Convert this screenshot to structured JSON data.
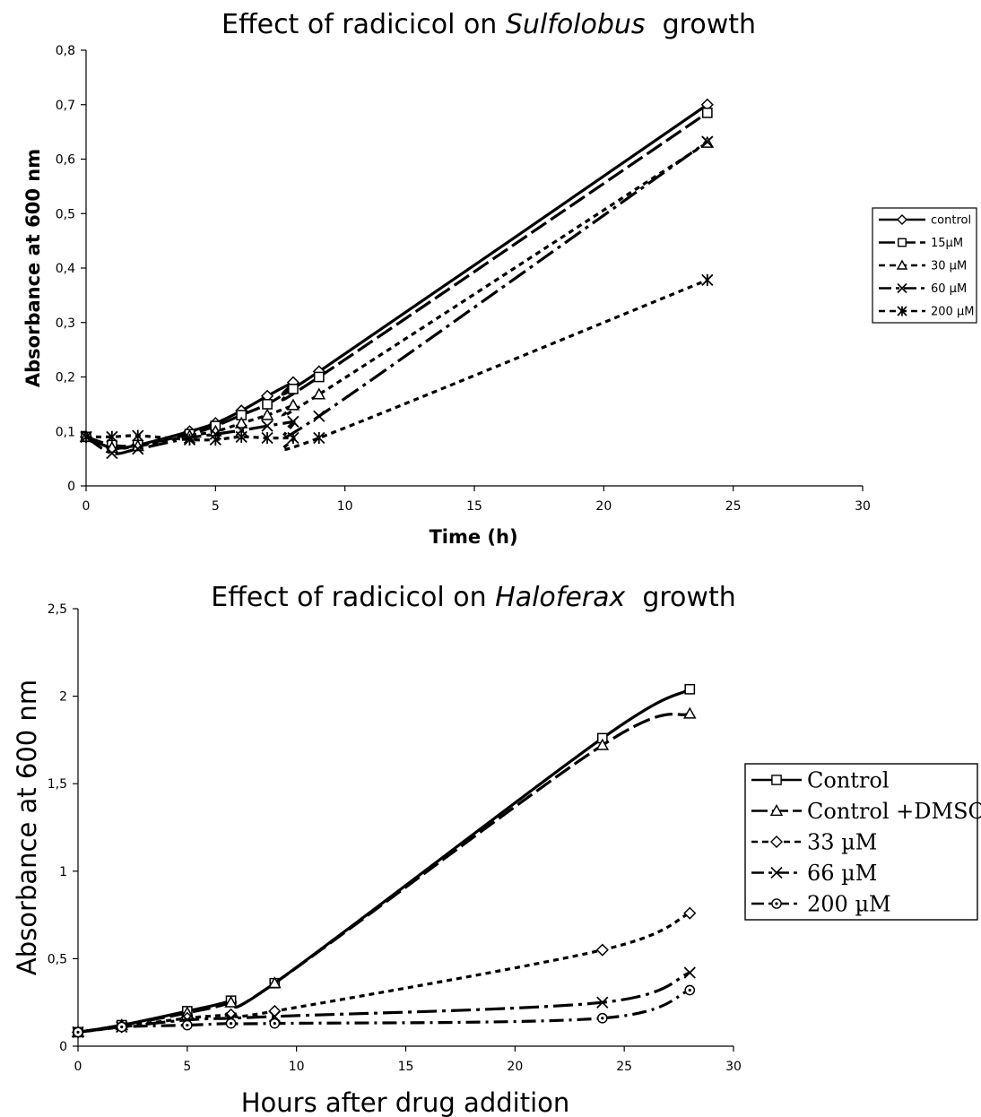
{
  "chart_data": [
    {
      "type": "line",
      "title_prefix": "Effect of radicicol on ",
      "title_italic": "Sulfolobus",
      "title_suffix": "growth",
      "xlabel": "Time (h)",
      "ylabel": "Absorbance at 600 nm",
      "xlim": [
        0,
        30
      ],
      "ylim": [
        0,
        0.8
      ],
      "xticks": [
        "0",
        "5",
        "10",
        "15",
        "20",
        "25",
        "30"
      ],
      "yticks": [
        "0",
        "0,1",
        "0,2",
        "0,3",
        "0,4",
        "0,5",
        "0,6",
        "0,7",
        "0,8"
      ],
      "grid": false,
      "legend_position": "right",
      "series": [
        {
          "name": "control",
          "marker": "diamond",
          "dash": "solid",
          "x": [
            0,
            1,
            2,
            4,
            5,
            6,
            7,
            8,
            9,
            24
          ],
          "y": [
            0.09,
            0.07,
            0.075,
            0.1,
            0.115,
            0.138,
            0.165,
            0.19,
            0.21,
            0.7
          ]
        },
        {
          "name": "15µM",
          "marker": "square",
          "dash": "longdash",
          "x": [
            0,
            1,
            2,
            4,
            5,
            6,
            7,
            8,
            9,
            24
          ],
          "y": [
            0.09,
            0.075,
            0.075,
            0.095,
            0.11,
            0.13,
            0.15,
            0.178,
            0.2,
            0.685
          ]
        },
        {
          "name": "30 µM",
          "marker": "triangle",
          "dash": "shortdash",
          "x": [
            0,
            1,
            2,
            4,
            5,
            6,
            7,
            8,
            9,
            24
          ],
          "y": [
            0.09,
            0.07,
            0.073,
            0.092,
            0.1,
            0.115,
            0.13,
            0.148,
            0.168,
            0.63
          ]
        },
        {
          "name": "60 µM",
          "marker": "x",
          "dash": "dashdot",
          "x": [
            0,
            1,
            2,
            4,
            5,
            6,
            7,
            8,
            9,
            24
          ],
          "y": [
            0.09,
            0.06,
            0.068,
            0.088,
            0.095,
            0.102,
            0.11,
            0.118,
            0.128,
            0.632
          ]
        },
        {
          "name": "200 µM",
          "marker": "star",
          "dash": "shortdash",
          "x": [
            0,
            1,
            2,
            4,
            5,
            6,
            7,
            8,
            9,
            24
          ],
          "y": [
            0.09,
            0.09,
            0.092,
            0.085,
            0.085,
            0.09,
            0.088,
            0.088,
            0.088,
            0.378
          ]
        }
      ]
    },
    {
      "type": "line",
      "title_prefix": "Effect of radicicol on ",
      "title_italic": "Haloferax",
      "title_suffix": "growth",
      "xlabel": "Hours after drug addition",
      "ylabel": "Absorbance at 600 nm",
      "xlim": [
        0,
        30
      ],
      "ylim": [
        0,
        2.5
      ],
      "xticks": [
        "0",
        "5",
        "10",
        "15",
        "20",
        "25",
        "30"
      ],
      "yticks": [
        "0",
        "0,5",
        "1",
        "1,5",
        "2",
        "2,5"
      ],
      "grid": false,
      "legend_position": "right",
      "series": [
        {
          "name": "Control",
          "marker": "square",
          "dash": "solid",
          "x": [
            0,
            2,
            5,
            7,
            9,
            24,
            28
          ],
          "y": [
            0.08,
            0.12,
            0.2,
            0.26,
            0.36,
            1.76,
            2.04
          ]
        },
        {
          "name": "Control +DMSO",
          "marker": "triangle",
          "dash": "longdash",
          "x": [
            0,
            2,
            5,
            7,
            9,
            24,
            28
          ],
          "y": [
            0.08,
            0.12,
            0.19,
            0.25,
            0.36,
            1.72,
            1.9
          ]
        },
        {
          "name": "33 µM",
          "marker": "diamond",
          "dash": "shortdash",
          "x": [
            0,
            2,
            5,
            7,
            9,
            24,
            28
          ],
          "y": [
            0.08,
            0.11,
            0.16,
            0.18,
            0.2,
            0.55,
            0.76
          ]
        },
        {
          "name": "66 µM",
          "marker": "x",
          "dash": "dashdot",
          "x": [
            0,
            2,
            5,
            7,
            9,
            24,
            28
          ],
          "y": [
            0.08,
            0.11,
            0.15,
            0.16,
            0.17,
            0.25,
            0.42
          ]
        },
        {
          "name": "200 µM",
          "marker": "circle",
          "dash": "dashdot2",
          "x": [
            0,
            2,
            5,
            7,
            9,
            24,
            28
          ],
          "y": [
            0.08,
            0.11,
            0.12,
            0.13,
            0.13,
            0.16,
            0.32
          ]
        }
      ]
    }
  ]
}
